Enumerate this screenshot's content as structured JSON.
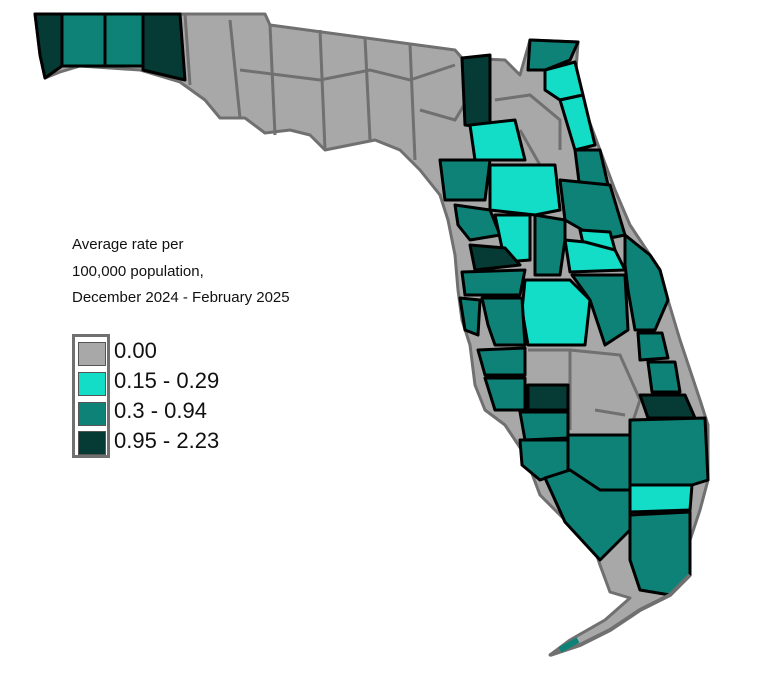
{
  "legend": {
    "title_lines": [
      "Average rate per",
      "100,000 population,",
      "December 2024 - February 2025"
    ],
    "items": [
      {
        "label": "0.00",
        "color": "#a8a8a8"
      },
      {
        "label": "0.15 - 0.29",
        "color": "#13dcc7"
      },
      {
        "label": "0.3 - 0.94",
        "color": "#0e8276"
      },
      {
        "label": "0.95 - 2.23",
        "color": "#063a35"
      }
    ]
  },
  "colors": {
    "no_cases": "#a8a8a8",
    "low": "#13dcc7",
    "medium": "#0e8276",
    "high": "#063a35",
    "county_border_gray": "#707070",
    "county_border_black": "#000000"
  }
}
